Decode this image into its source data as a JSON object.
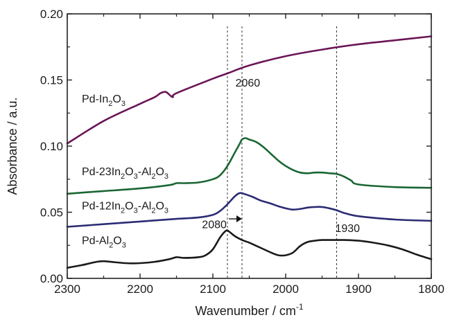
{
  "chart_data": {
    "type": "line",
    "xlabel": "Wavenumber / cm",
    "xlabel_sup": "-1",
    "ylabel": "Absorbance / a.u.",
    "xlim": [
      2300,
      1800
    ],
    "ylim": [
      0.0,
      0.2
    ],
    "x_reversed": true,
    "grid": false,
    "legend": "none",
    "x_ticks": [
      2300,
      2200,
      2100,
      2000,
      1900,
      1800
    ],
    "x_tick_labels": [
      "2300",
      "2200",
      "2100",
      "2000",
      "1900",
      "1800"
    ],
    "y_ticks": [
      0.0,
      0.05,
      0.1,
      0.15,
      0.2
    ],
    "y_tick_labels": [
      "0.00",
      "0.05",
      "0.10",
      "0.15",
      "0.20"
    ],
    "series": [
      {
        "name": "Pd-In2O3",
        "label_parts": [
          [
            "Pd-In",
            false
          ],
          [
            "2",
            true
          ],
          [
            "O",
            false
          ],
          [
            "3",
            true
          ]
        ],
        "label_at": [
          2280,
          0.133
        ],
        "color": "#6b1556",
        "x": [
          2300,
          2250,
          2200,
          2180,
          2172,
          2165,
          2160,
          2155,
          2150,
          2100,
          2080,
          2050,
          2000,
          1950,
          1900,
          1850,
          1800
        ],
        "y": [
          0.102,
          0.119,
          0.132,
          0.137,
          0.14,
          0.141,
          0.139,
          0.137,
          0.14,
          0.151,
          0.155,
          0.161,
          0.168,
          0.173,
          0.177,
          0.18,
          0.183
        ]
      },
      {
        "name": "Pd-23In2O3-Al2O3",
        "label_parts": [
          [
            "Pd-23In",
            false
          ],
          [
            "2",
            true
          ],
          [
            "O",
            false
          ],
          [
            "3",
            true
          ],
          [
            "-Al",
            false
          ],
          [
            "2",
            true
          ],
          [
            "O",
            false
          ],
          [
            "3",
            true
          ]
        ],
        "label_at": [
          2280,
          0.078
        ],
        "color": "#1a6633",
        "x": [
          2300,
          2250,
          2200,
          2160,
          2150,
          2140,
          2120,
          2100,
          2090,
          2080,
          2070,
          2063,
          2060,
          2055,
          2050,
          2040,
          2030,
          2020,
          2010,
          2000,
          1990,
          1980,
          1970,
          1960,
          1950,
          1940,
          1930,
          1920,
          1910,
          1900,
          1850,
          1800
        ],
        "y": [
          0.064,
          0.066,
          0.068,
          0.0705,
          0.072,
          0.072,
          0.0725,
          0.075,
          0.078,
          0.085,
          0.095,
          0.102,
          0.105,
          0.106,
          0.105,
          0.103,
          0.099,
          0.094,
          0.089,
          0.085,
          0.082,
          0.08,
          0.0795,
          0.08,
          0.08,
          0.0795,
          0.079,
          0.077,
          0.074,
          0.071,
          0.069,
          0.0685
        ]
      },
      {
        "name": "Pd-12In2O3-Al2O3",
        "label_parts": [
          [
            "Pd-12In",
            false
          ],
          [
            "2",
            true
          ],
          [
            "O",
            false
          ],
          [
            "3",
            true
          ],
          [
            "-Al",
            false
          ],
          [
            "2",
            true
          ],
          [
            "O",
            false
          ],
          [
            "3",
            true
          ]
        ],
        "label_at": [
          2280,
          0.052
        ],
        "color": "#2b2b74",
        "x": [
          2300,
          2250,
          2200,
          2150,
          2120,
          2100,
          2090,
          2080,
          2070,
          2063,
          2055,
          2045,
          2035,
          2020,
          2010,
          2000,
          1990,
          1980,
          1970,
          1960,
          1950,
          1940,
          1930,
          1920,
          1900,
          1850,
          1800
        ],
        "y": [
          0.039,
          0.041,
          0.043,
          0.045,
          0.046,
          0.048,
          0.051,
          0.056,
          0.062,
          0.0645,
          0.0635,
          0.0615,
          0.059,
          0.0565,
          0.0545,
          0.053,
          0.052,
          0.0525,
          0.0535,
          0.054,
          0.054,
          0.053,
          0.0515,
          0.0495,
          0.047,
          0.0445,
          0.0435
        ]
      },
      {
        "name": "Pd-Al2O3",
        "label_parts": [
          [
            "Pd-Al",
            false
          ],
          [
            "2",
            true
          ],
          [
            "O",
            false
          ],
          [
            "3",
            true
          ]
        ],
        "label_at": [
          2280,
          0.026
        ],
        "color": "#1a1a1a",
        "x": [
          2300,
          2280,
          2260,
          2250,
          2240,
          2220,
          2200,
          2180,
          2160,
          2150,
          2140,
          2120,
          2110,
          2100,
          2090,
          2082,
          2078,
          2070,
          2060,
          2050,
          2040,
          2030,
          2020,
          2010,
          2000,
          1990,
          1980,
          1970,
          1960,
          1950,
          1940,
          1930,
          1920,
          1900,
          1880,
          1860,
          1840,
          1820,
          1800
        ],
        "y": [
          0.008,
          0.01,
          0.0125,
          0.013,
          0.0125,
          0.0115,
          0.0115,
          0.0125,
          0.0145,
          0.016,
          0.0155,
          0.016,
          0.0175,
          0.022,
          0.031,
          0.036,
          0.0355,
          0.032,
          0.029,
          0.027,
          0.0245,
          0.022,
          0.0195,
          0.0175,
          0.0175,
          0.0195,
          0.0245,
          0.0275,
          0.0285,
          0.029,
          0.029,
          0.029,
          0.029,
          0.0285,
          0.027,
          0.025,
          0.022,
          0.018,
          0.0145
        ]
      }
    ],
    "reference_lines": [
      {
        "x": 2080,
        "label": "2080",
        "label_at": [
          2098,
          0.038
        ],
        "style": "dashed"
      },
      {
        "x": 2060,
        "label": "2060",
        "label_at": [
          2052,
          0.145
        ],
        "style": "dashed"
      },
      {
        "x": 1930,
        "label": "1930",
        "label_at": [
          1915,
          0.035
        ],
        "style": "dashed"
      }
    ],
    "arrow": {
      "from": [
        2078,
        0.045
      ],
      "to": [
        2060,
        0.045
      ]
    }
  }
}
